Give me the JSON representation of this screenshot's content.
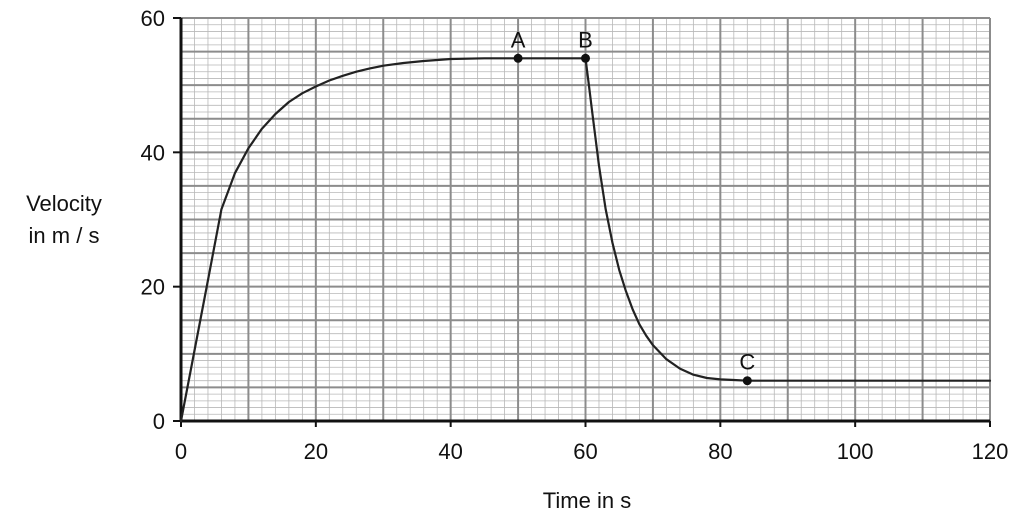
{
  "chart_data": {
    "type": "line",
    "title": "",
    "xlabel": "Time in s",
    "ylabel_lines": [
      "Velocity",
      "in m / s"
    ],
    "xlim": [
      0,
      120
    ],
    "ylim": [
      0,
      60
    ],
    "x_ticks": [
      0,
      20,
      40,
      60,
      80,
      100,
      120
    ],
    "x_tick_labels": [
      "0",
      "20",
      "40",
      "60",
      "80",
      "100",
      "120"
    ],
    "y_ticks": [
      0,
      20,
      40,
      60
    ],
    "y_tick_labels": [
      "0",
      "20",
      "40",
      "60"
    ],
    "grid": {
      "major_step_x": 10,
      "major_step_y": 5,
      "minor_step_x": 2,
      "minor_step_y": 1
    },
    "series": [
      {
        "x": [
          0,
          2,
          4,
          6,
          8,
          10,
          12,
          14,
          16,
          18,
          20,
          22,
          24,
          26,
          28,
          30,
          33,
          36,
          40,
          45,
          50,
          55,
          60,
          60.5,
          61,
          62,
          63,
          64,
          65,
          66,
          67,
          68,
          69,
          70,
          72,
          74,
          76,
          78,
          80,
          82,
          84,
          90,
          100,
          110,
          120
        ],
        "y": [
          0,
          10.5,
          21,
          31.5,
          36.9,
          40.6,
          43.5,
          45.7,
          47.5,
          48.8,
          49.8,
          50.7,
          51.4,
          52,
          52.5,
          52.9,
          53.3,
          53.6,
          53.9,
          54,
          54,
          54,
          54,
          50,
          46,
          38,
          31.5,
          26.5,
          22.5,
          19.3,
          16.6,
          14.4,
          12.7,
          11.3,
          9.2,
          7.8,
          6.9,
          6.4,
          6.2,
          6.1,
          6,
          6,
          6,
          6,
          6
        ],
        "color": "#222222"
      }
    ],
    "points": [
      {
        "label": "A",
        "x": 50,
        "y": 54
      },
      {
        "label": "B",
        "x": 60,
        "y": 54
      },
      {
        "label": "C",
        "x": 84,
        "y": 6
      }
    ]
  }
}
